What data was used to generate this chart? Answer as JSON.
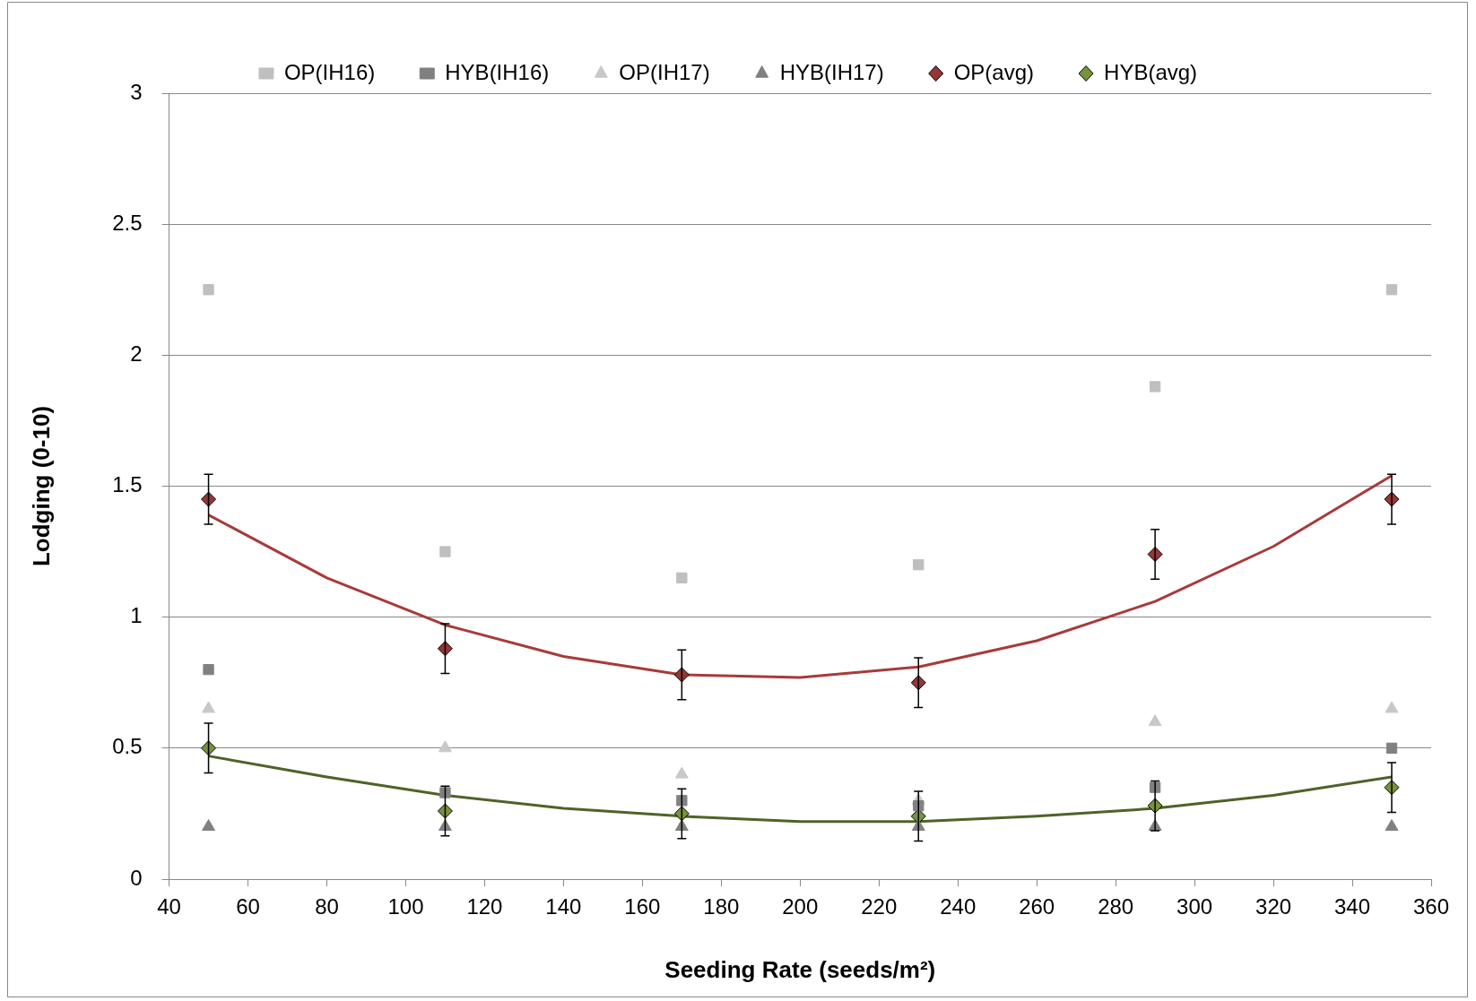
{
  "chart_data": {
    "type": "scatter",
    "xlabel": "Seeding Rate (seeds/m²)",
    "ylabel": "Lodging (0-10)",
    "x": [
      50,
      110,
      170,
      230,
      290,
      350
    ],
    "xlim": [
      40,
      360
    ],
    "xticks": [
      40,
      60,
      80,
      100,
      120,
      140,
      160,
      180,
      200,
      220,
      240,
      260,
      280,
      300,
      320,
      340,
      360
    ],
    "ylim": [
      0,
      3
    ],
    "yticks": [
      0,
      0.5,
      1,
      1.5,
      2,
      2.5,
      3
    ],
    "grid": "y",
    "legend": "top",
    "series": [
      {
        "name": "OP(IH16)",
        "color": "#bfbfbf",
        "marker": "square",
        "values": [
          2.25,
          1.25,
          1.15,
          1.2,
          1.88,
          2.25
        ]
      },
      {
        "name": "HYB(IH16)",
        "color": "#808080",
        "marker": "square",
        "values": [
          0.8,
          0.33,
          0.3,
          0.28,
          0.35,
          0.5
        ]
      },
      {
        "name": "OP(IH17)",
        "color": "#c8c8c8",
        "marker": "triangle",
        "values": [
          0.65,
          0.5,
          0.4,
          0.3,
          0.6,
          0.65
        ]
      },
      {
        "name": "HYB(IH17)",
        "color": "#808080",
        "marker": "triangle",
        "values": [
          0.2,
          0.2,
          0.2,
          0.2,
          0.2,
          0.2
        ]
      },
      {
        "name": "OP(avg)",
        "color": "#953735",
        "marker": "diamond",
        "values": [
          1.45,
          0.88,
          0.78,
          0.75,
          1.24,
          1.45
        ],
        "errors": [
          0.095,
          0.095,
          0.095,
          0.095,
          0.095,
          0.095
        ]
      },
      {
        "name": "HYB(avg)",
        "color": "#77933c",
        "marker": "diamond",
        "values": [
          0.5,
          0.26,
          0.25,
          0.24,
          0.28,
          0.35
        ],
        "errors": [
          0.095,
          0.095,
          0.095,
          0.095,
          0.095,
          0.095
        ]
      },
      {
        "type": "line",
        "color": "#a83a3a",
        "marker": "none",
        "x": [
          50,
          80,
          110,
          140,
          170,
          200,
          230,
          260,
          290,
          320,
          350
        ],
        "values": [
          1.39,
          1.15,
          0.97,
          0.85,
          0.78,
          0.77,
          0.81,
          0.91,
          1.06,
          1.27,
          1.54
        ]
      },
      {
        "type": "line",
        "color": "#4f6228",
        "marker": "none",
        "x": [
          50,
          80,
          110,
          140,
          170,
          200,
          230,
          260,
          290,
          320,
          350
        ],
        "values": [
          0.47,
          0.39,
          0.32,
          0.27,
          0.24,
          0.22,
          0.22,
          0.24,
          0.27,
          0.32,
          0.39
        ]
      }
    ]
  }
}
